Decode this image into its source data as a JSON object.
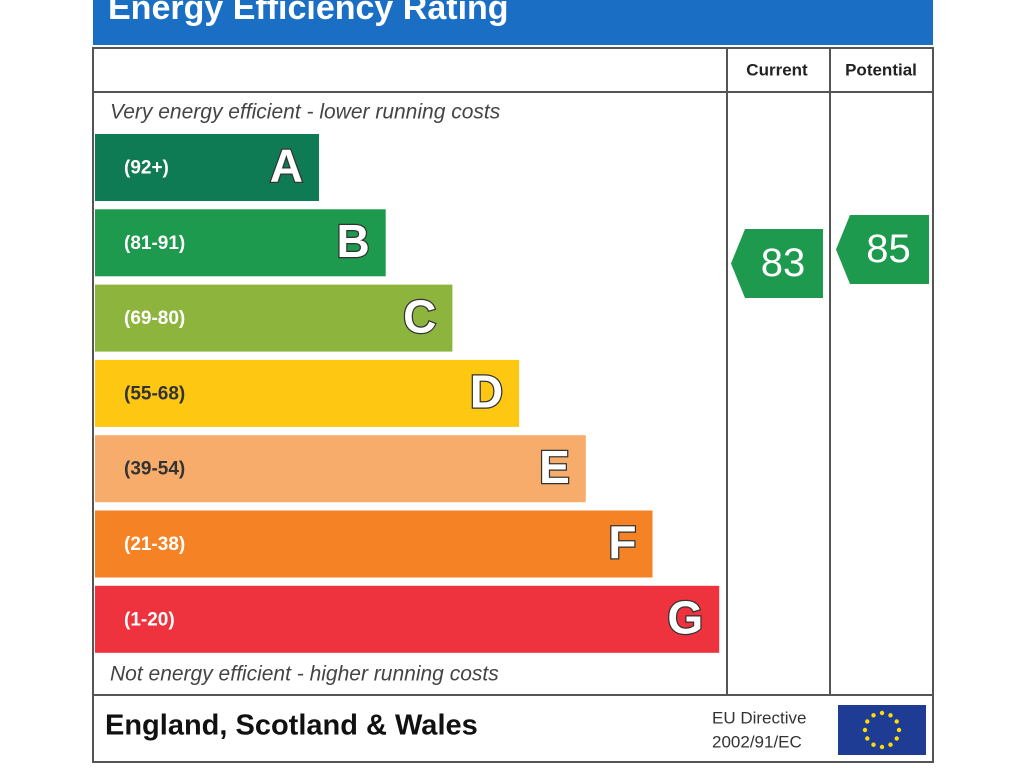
{
  "header": {
    "title": "Energy Efficiency Rating"
  },
  "columns": [
    "Current",
    "Potential"
  ],
  "top_note": "Very energy efficient - lower running costs",
  "bands": [
    {
      "range": "(92+)",
      "letter": "A",
      "color": "#0f7b54"
    },
    {
      "range": "(81-91)",
      "letter": "B",
      "color": "#1d9a4e"
    },
    {
      "range": "(69-80)",
      "letter": "C",
      "color": "#8db53e"
    },
    {
      "range": "(55-68)",
      "letter": "D",
      "color": "#fec712"
    },
    {
      "range": "(39-54)",
      "letter": "E",
      "color": "#f8ac6b"
    },
    {
      "range": "(21-38)",
      "letter": "F",
      "color": "#f58224"
    },
    {
      "range": "(1-20)",
      "letter": "G",
      "color": "#ee323e"
    }
  ],
  "bottom_note": "Not energy efficient - higher running costs",
  "current": 83,
  "potential": 85,
  "rating_color": "#1d9a4e",
  "footer": {
    "region": "England, Scotland & Wales",
    "directive": [
      "EU Directive",
      "2002/91/EC"
    ]
  }
}
